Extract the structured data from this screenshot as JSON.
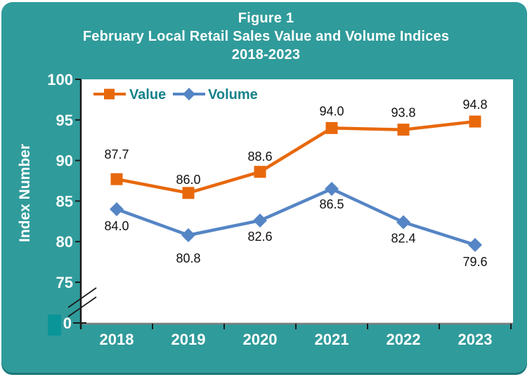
{
  "colors": {
    "panel_bg": "#309B9B",
    "plot_bg": "#FFFFFF",
    "title_text": "#FFFFFF",
    "axis_label_text": "#FFFFFF",
    "legend_text": "#16818A",
    "data_label_text": "#111111",
    "x_axis_line": "#808080",
    "y_axis_line": "#1A1A1A",
    "accent_square": "#0A9598"
  },
  "chart_data": {
    "type": "line",
    "title": "Figure 1",
    "subtitle": "February Local Retail Sales Value and Volume Indices",
    "period": "2018-2023",
    "ylabel": "Index Number",
    "xlabel": "",
    "categories": [
      "2018",
      "2019",
      "2020",
      "2021",
      "2022",
      "2023"
    ],
    "series": [
      {
        "name": "Value",
        "color": "#E8680C",
        "marker": "square",
        "values": [
          87.7,
          86.0,
          88.6,
          94.0,
          93.8,
          94.8
        ],
        "label_side": "above",
        "label_dy": [
          -35,
          -19,
          -22,
          -24,
          -24,
          -24
        ]
      },
      {
        "name": "Volume",
        "color": "#5585C5",
        "marker": "diamond",
        "values": [
          84.0,
          80.8,
          82.6,
          86.5,
          82.4,
          79.6
        ],
        "label_side": "below",
        "label_dy": [
          24,
          33,
          23,
          22,
          23,
          24
        ]
      }
    ],
    "y_ticks": [
      100,
      95,
      90,
      85,
      80,
      75,
      0
    ],
    "ylim_display": [
      75,
      100
    ],
    "axis_break": true,
    "grid": false,
    "legend_position": "top-left-inside"
  }
}
